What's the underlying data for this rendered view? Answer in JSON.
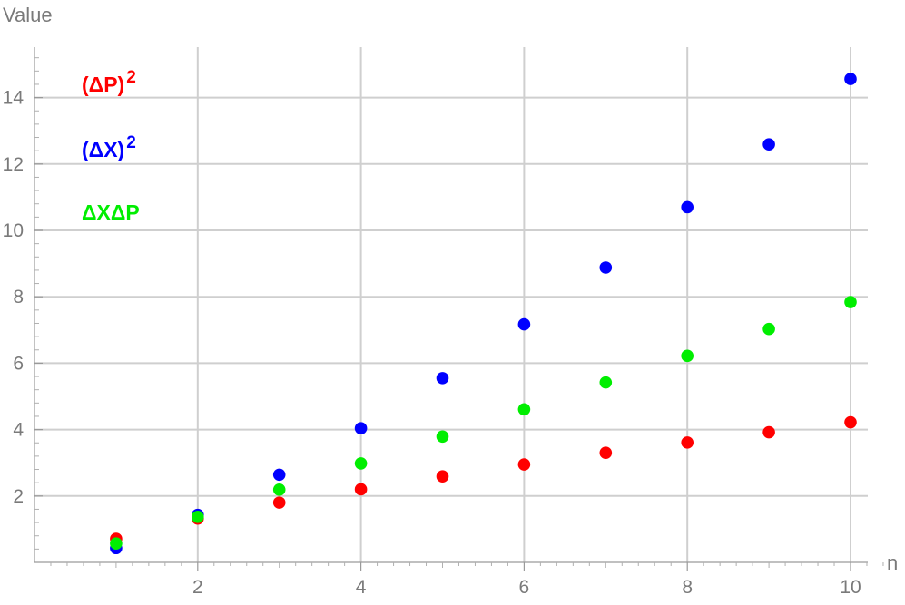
{
  "chart_data": {
    "type": "scatter",
    "xlabel": "n",
    "ylabel": "Value",
    "xlim": [
      0,
      10.5
    ],
    "ylim": [
      0,
      15.4
    ],
    "x_ticks": [
      2,
      4,
      6,
      8,
      10
    ],
    "y_ticks": [
      2,
      4,
      6,
      8,
      10,
      12,
      14
    ],
    "grid": true,
    "legend_position": "top-left",
    "x": [
      1,
      2,
      3,
      4,
      5,
      6,
      7,
      8,
      9,
      10
    ],
    "series": [
      {
        "name": "(ΔP)",
        "superscript": "2",
        "color": "#ff0000",
        "values": [
          0.71,
          1.32,
          1.8,
          2.2,
          2.59,
          2.95,
          3.3,
          3.61,
          3.92,
          4.22
        ]
      },
      {
        "name": "(ΔX)",
        "superscript": "2",
        "color": "#0000ff",
        "values": [
          0.43,
          1.43,
          2.64,
          4.04,
          5.55,
          7.17,
          8.88,
          10.7,
          12.59,
          14.56
        ]
      },
      {
        "name": "ΔXΔP",
        "superscript": "",
        "color": "#00ee00",
        "values": [
          0.57,
          1.37,
          2.19,
          2.98,
          3.79,
          4.61,
          5.42,
          6.22,
          7.03,
          7.84
        ]
      }
    ]
  }
}
